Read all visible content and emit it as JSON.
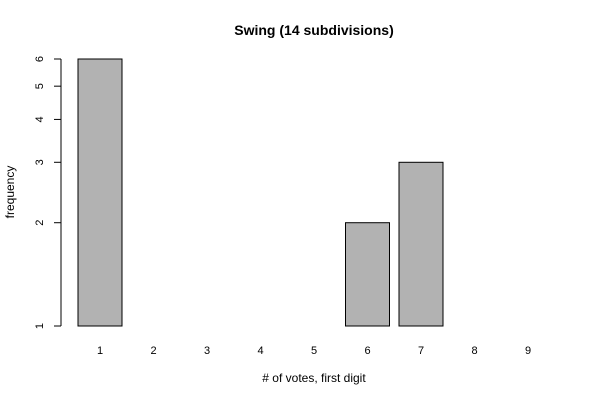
{
  "chart_data": {
    "type": "bar",
    "title": "Swing (14 subdivisions)",
    "xlabel": "# of votes, first digit",
    "ylabel": "frequency",
    "categories": [
      "1",
      "2",
      "3",
      "4",
      "5",
      "6",
      "7",
      "8",
      "9"
    ],
    "values": [
      6,
      1,
      1,
      1,
      1,
      2,
      3,
      1,
      1
    ],
    "drawn": [
      true,
      false,
      true,
      true,
      false,
      true,
      true,
      false,
      true
    ],
    "yscale": "log",
    "ylim": [
      1,
      6
    ],
    "yticks": [
      1,
      2,
      3,
      4,
      5,
      6
    ],
    "grid": false,
    "bar_color": "#b2b2b2"
  }
}
